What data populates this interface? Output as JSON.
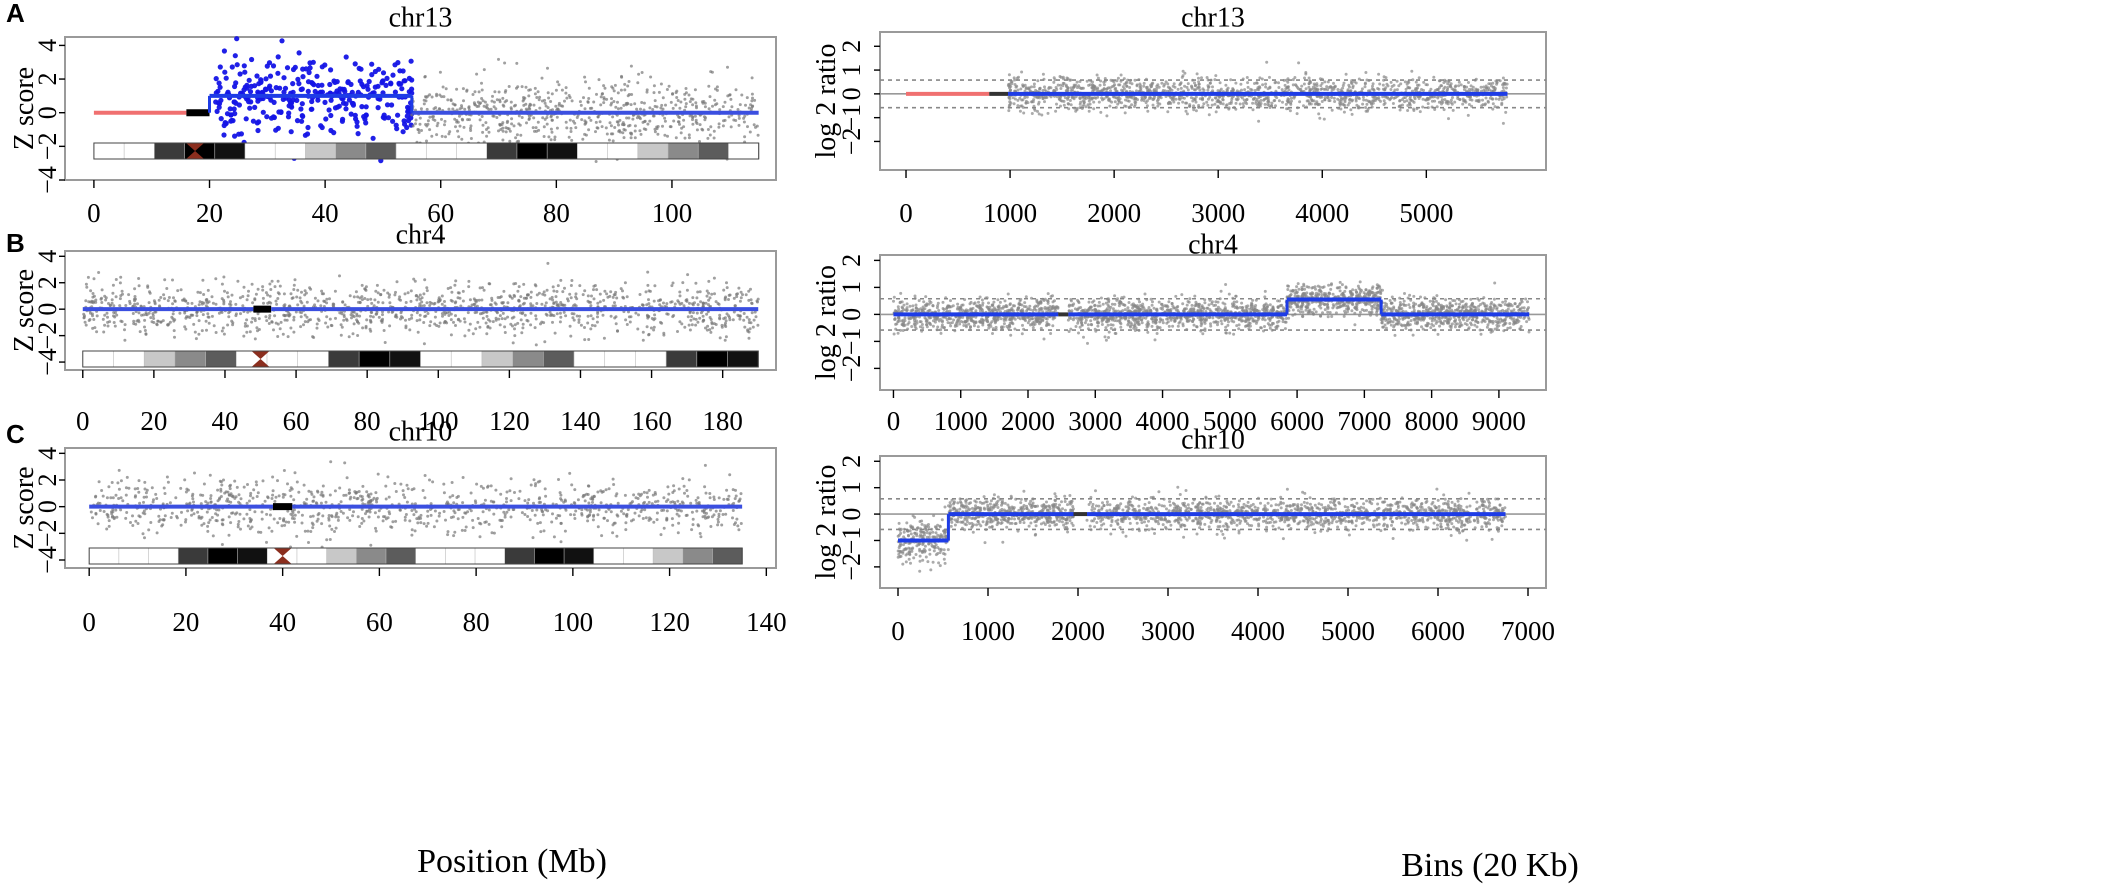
{
  "figure": {
    "xlabel_left": "Position (Mb)",
    "xlabel_right": "Bins (20 Kb)"
  },
  "chart_data": [
    {
      "panel": "A",
      "type": "scatter",
      "title": "chr13",
      "ylabel": "Z score",
      "ylim": [
        -4,
        4.5
      ],
      "xlim": [
        -5,
        118
      ],
      "yticks": [
        "4",
        "2",
        "0",
        "−2",
        "−4"
      ],
      "xticks": [
        0,
        20,
        40,
        60,
        80,
        100
      ],
      "ideogram": true,
      "centromere": 17.5,
      "segments": [
        {
          "from": 0,
          "to": 16,
          "value": 0,
          "color": "#f07070"
        },
        {
          "from": 16,
          "to": 20,
          "value": 0,
          "color": "#000000"
        },
        {
          "from": 20,
          "to": 55,
          "value": 1.0,
          "color": "#1e3ce6"
        },
        {
          "from": 55,
          "to": 115,
          "value": 0,
          "color": "#3b4fe0"
        }
      ],
      "clouds": [
        {
          "from": 21,
          "to": 55,
          "center": 1.0,
          "spread": 1.1,
          "color": "#1414e6",
          "count": 330
        },
        {
          "from": 55,
          "to": 115,
          "center": 0,
          "spread": 1.0,
          "color": "#777777",
          "count": 700
        }
      ]
    },
    {
      "panel": "",
      "type": "scatter",
      "title": "chr13",
      "ylabel": "log 2 ratio",
      "ylim": [
        -3.2,
        2.6
      ],
      "xlim": [
        -250,
        6150
      ],
      "yticks": [
        "2",
        "1",
        "0",
        "−1",
        "−2"
      ],
      "xticks": [
        0,
        1000,
        2000,
        3000,
        4000,
        5000
      ],
      "threshold": 0.58,
      "segments": [
        {
          "from": 0,
          "to": 800,
          "value": 0,
          "color": "#f07070"
        },
        {
          "from": 800,
          "to": 980,
          "value": 0,
          "color": "#333333"
        },
        {
          "from": 980,
          "to": 5780,
          "value": 0,
          "color": "#1e3ce6"
        }
      ],
      "clouds": [
        {
          "from": 980,
          "to": 5780,
          "center": 0,
          "spread": 0.35,
          "color": "#888888",
          "count": 1500
        }
      ]
    },
    {
      "panel": "B",
      "type": "scatter",
      "title": "chr4",
      "ylabel": "Z score",
      "ylim": [
        -4.6,
        4.4
      ],
      "xlim": [
        -5,
        195
      ],
      "yticks": [
        "4",
        "2",
        "0",
        "−2",
        "−4"
      ],
      "xticks": [
        0,
        20,
        40,
        60,
        80,
        100,
        120,
        140,
        160,
        180
      ],
      "ideogram": true,
      "centromere": 50,
      "segments": [
        {
          "from": 0,
          "to": 48,
          "value": 0,
          "color": "#3b4fe0"
        },
        {
          "from": 48,
          "to": 53,
          "value": 0,
          "color": "#000000"
        },
        {
          "from": 53,
          "to": 190,
          "value": 0,
          "color": "#3b4fe0"
        }
      ],
      "clouds": [
        {
          "from": 0,
          "to": 190,
          "center": 0,
          "spread": 1.0,
          "color": "#777777",
          "count": 1300
        }
      ]
    },
    {
      "panel": "",
      "type": "scatter",
      "title": "chr4",
      "ylabel": "log 2 ratio",
      "ylim": [
        -2.8,
        2.2
      ],
      "xlim": [
        -200,
        9700
      ],
      "yticks": [
        "2",
        "1",
        "0",
        "−1",
        "−2"
      ],
      "xticks": [
        0,
        1000,
        2000,
        3000,
        4000,
        5000,
        6000,
        7000,
        8000,
        9000
      ],
      "threshold": 0.58,
      "segments": [
        {
          "from": 0,
          "to": 2450,
          "value": 0,
          "color": "#1e3ce6"
        },
        {
          "from": 2450,
          "to": 2600,
          "value": 0,
          "color": "#333333"
        },
        {
          "from": 2600,
          "to": 5850,
          "value": 0,
          "color": "#1e3ce6"
        },
        {
          "from": 5850,
          "to": 7250,
          "value": 0.55,
          "color": "#1e3ce6"
        },
        {
          "from": 7250,
          "to": 9450,
          "value": 0,
          "color": "#1e3ce6"
        }
      ],
      "clouds": [
        {
          "from": 0,
          "to": 2450,
          "center": 0,
          "spread": 0.3,
          "color": "#888888",
          "count": 700
        },
        {
          "from": 2600,
          "to": 5850,
          "center": 0,
          "spread": 0.3,
          "color": "#888888",
          "count": 900
        },
        {
          "from": 5850,
          "to": 7250,
          "center": 0.55,
          "spread": 0.3,
          "color": "#888888",
          "count": 450
        },
        {
          "from": 7250,
          "to": 9450,
          "center": 0,
          "spread": 0.3,
          "color": "#888888",
          "count": 650
        }
      ]
    },
    {
      "panel": "C",
      "type": "scatter",
      "title": "chr10",
      "ylabel": "Z score",
      "ylim": [
        -4.6,
        4.4
      ],
      "xlim": [
        -5,
        142
      ],
      "yticks": [
        "4",
        "2",
        "0",
        "−2",
        "−4"
      ],
      "xticks": [
        0,
        20,
        40,
        60,
        80,
        100,
        120,
        140
      ],
      "ideogram": true,
      "centromere": 40,
      "segments": [
        {
          "from": 0,
          "to": 38,
          "value": 0,
          "color": "#3b4fe0"
        },
        {
          "from": 38,
          "to": 42,
          "value": 0,
          "color": "#000000"
        },
        {
          "from": 42,
          "to": 135,
          "value": 0,
          "color": "#3b4fe0"
        }
      ],
      "clouds": [
        {
          "from": 0,
          "to": 135,
          "center": 0,
          "spread": 1.0,
          "color": "#777777",
          "count": 1000
        }
      ]
    },
    {
      "panel": "",
      "type": "scatter",
      "title": "chr10",
      "ylabel": "log 2 ratio",
      "ylim": [
        -2.8,
        2.2
      ],
      "xlim": [
        -200,
        7200
      ],
      "yticks": [
        "2",
        "1",
        "0",
        "−1",
        "−2"
      ],
      "xticks": [
        0,
        1000,
        2000,
        3000,
        4000,
        5000,
        6000,
        7000
      ],
      "threshold": 0.58,
      "segments": [
        {
          "from": 0,
          "to": 560,
          "value": -1.0,
          "color": "#1e3ce6"
        },
        {
          "from": 560,
          "to": 1950,
          "value": 0,
          "color": "#1e3ce6"
        },
        {
          "from": 1950,
          "to": 2100,
          "value": 0,
          "color": "#333333"
        },
        {
          "from": 2100,
          "to": 6750,
          "value": 0,
          "color": "#1e3ce6"
        }
      ],
      "clouds": [
        {
          "from": 0,
          "to": 560,
          "center": -1.0,
          "spread": 0.4,
          "color": "#888888",
          "count": 220
        },
        {
          "from": 560,
          "to": 1950,
          "center": 0,
          "spread": 0.3,
          "color": "#888888",
          "count": 500
        },
        {
          "from": 2100,
          "to": 6750,
          "center": 0,
          "spread": 0.3,
          "color": "#888888",
          "count": 1300
        }
      ]
    }
  ]
}
